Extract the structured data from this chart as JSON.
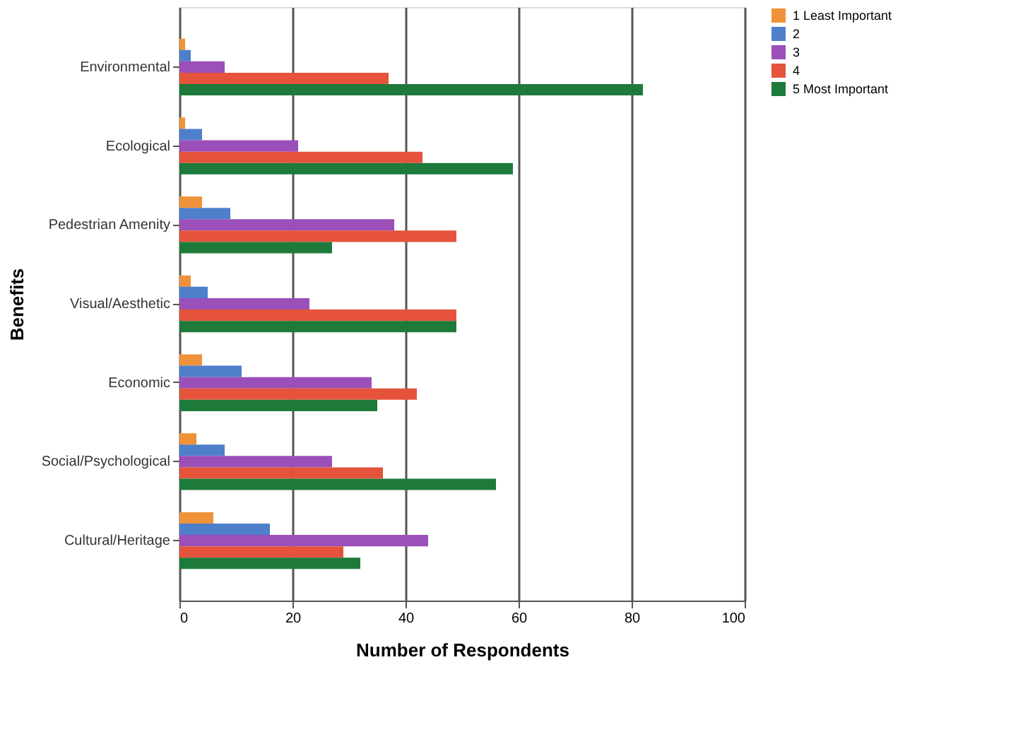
{
  "chart_data": {
    "type": "bar",
    "orientation": "horizontal",
    "xlabel": "Number of Respondents",
    "ylabel": "Benefits",
    "categories": [
      "Environmental",
      "Ecological",
      "Pedestrian Amenity",
      "Visual/Aesthetic",
      "Economic",
      "Social/Psychological",
      "Cultural/Heritage"
    ],
    "series": [
      {
        "name": "1 Least Important",
        "color": "#f0923a",
        "values": [
          1,
          1,
          4,
          2,
          4,
          3,
          6
        ]
      },
      {
        "name": "2",
        "color": "#4e7fcb",
        "values": [
          2,
          4,
          9,
          5,
          11,
          8,
          16
        ]
      },
      {
        "name": "3",
        "color": "#9b4fb8",
        "values": [
          8,
          21,
          38,
          23,
          34,
          27,
          44
        ]
      },
      {
        "name": "4",
        "color": "#e5533c",
        "values": [
          37,
          43,
          49,
          49,
          42,
          36,
          29
        ]
      },
      {
        "name": "5 Most Important",
        "color": "#1e7a3a",
        "values": [
          82,
          59,
          27,
          49,
          35,
          56,
          32
        ]
      }
    ],
    "xlim": [
      0,
      100
    ],
    "xticks": [
      0,
      20,
      40,
      60,
      80,
      100
    ],
    "grid": "x",
    "legend": "right"
  }
}
